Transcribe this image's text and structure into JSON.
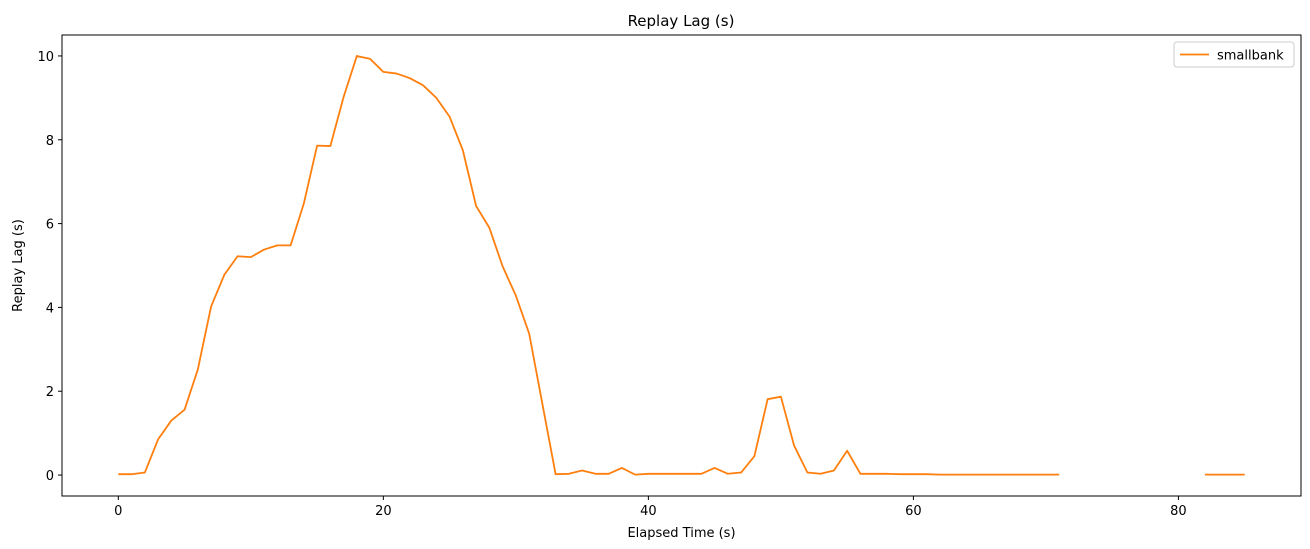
{
  "chart_data": {
    "type": "line",
    "title": "Replay Lag (s)",
    "xlabel": "Elapsed Time (s)",
    "ylabel": "Replay Lag (s)",
    "xlim": [
      -4.25,
      89.25
    ],
    "ylim": [
      -0.5,
      10.5
    ],
    "xticks": [
      0,
      20,
      40,
      60,
      80
    ],
    "yticks": [
      0,
      2,
      4,
      6,
      8,
      10
    ],
    "grid": false,
    "legend_position": "top-right",
    "series": [
      {
        "name": "smallbank",
        "color": "#ff7f0e",
        "segments": [
          {
            "x": [
              0,
              1,
              2,
              3,
              4,
              5,
              6,
              7,
              8,
              9,
              10,
              11,
              12,
              13,
              14,
              15,
              16,
              17,
              18,
              19,
              20,
              21,
              22,
              23,
              24,
              25,
              26,
              27,
              28,
              29,
              30,
              31,
              32,
              33,
              34,
              35,
              36,
              37,
              38,
              39,
              40,
              41,
              42,
              43,
              44,
              45,
              46,
              47,
              48,
              49,
              50,
              51,
              52,
              53,
              54,
              55,
              56,
              57,
              58,
              59,
              60,
              61,
              62,
              63,
              64,
              65,
              66,
              67,
              68,
              69,
              70,
              71
            ],
            "y": [
              0.02,
              0.02,
              0.06,
              0.85,
              1.3,
              1.56,
              2.52,
              4.02,
              4.78,
              5.22,
              5.2,
              5.38,
              5.48,
              5.48,
              6.48,
              7.86,
              7.85,
              9.02,
              10.0,
              9.93,
              9.62,
              9.58,
              9.47,
              9.3,
              9.0,
              8.55,
              7.75,
              6.42,
              5.9,
              4.98,
              4.28,
              3.38,
              1.7,
              0.02,
              0.03,
              0.11,
              0.03,
              0.03,
              0.17,
              0.01,
              0.03,
              0.03,
              0.03,
              0.03,
              0.03,
              0.17,
              0.03,
              0.06,
              0.45,
              1.81,
              1.87,
              0.7,
              0.06,
              0.03,
              0.11,
              0.58,
              0.03,
              0.03,
              0.03,
              0.02,
              0.02,
              0.02,
              0.01,
              0.01,
              0.01,
              0.01,
              0.01,
              0.01,
              0.01,
              0.01,
              0.01,
              0.01
            ]
          },
          {
            "x": [
              82,
              83,
              84,
              85
            ],
            "y": [
              0.01,
              0.01,
              0.01,
              0.01
            ]
          }
        ]
      }
    ]
  }
}
